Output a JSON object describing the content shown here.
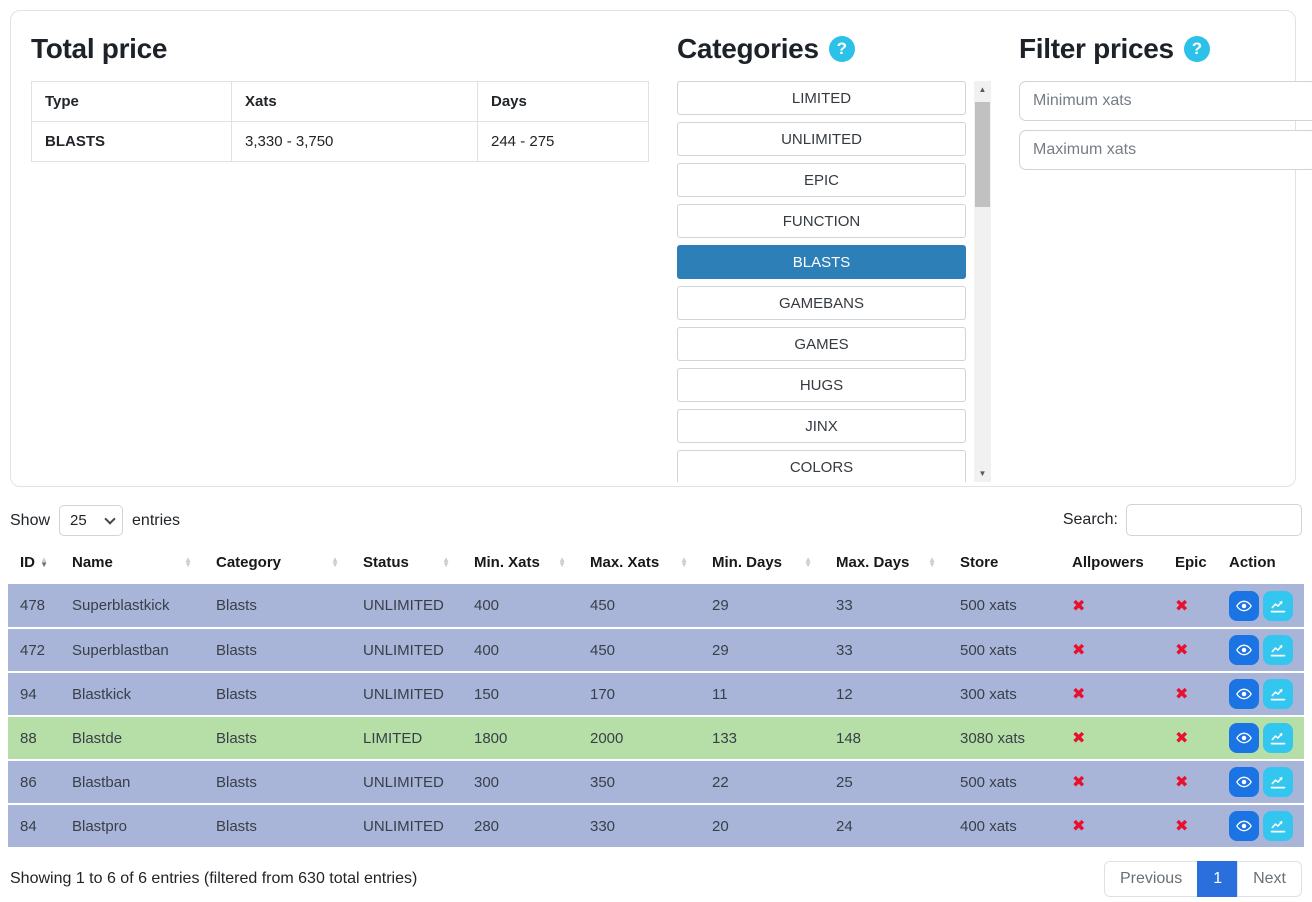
{
  "top": {
    "total_price": {
      "title": "Total price",
      "table": {
        "headers": [
          "Type",
          "Xats",
          "Days"
        ],
        "rows": [
          {
            "type": "BLASTS",
            "xats": "3,330 - 3,750",
            "days": "244 - 275"
          }
        ]
      }
    },
    "categories": {
      "title": "Categories",
      "help_icon": "?",
      "items": [
        {
          "label": "LIMITED",
          "selected": false
        },
        {
          "label": "UNLIMITED",
          "selected": false
        },
        {
          "label": "EPIC",
          "selected": false
        },
        {
          "label": "FUNCTION",
          "selected": false
        },
        {
          "label": "BLASTS",
          "selected": true
        },
        {
          "label": "GAMEBANS",
          "selected": false
        },
        {
          "label": "GAMES",
          "selected": false
        },
        {
          "label": "HUGS",
          "selected": false
        },
        {
          "label": "JINX",
          "selected": false
        },
        {
          "label": "COLORS",
          "selected": false
        }
      ]
    },
    "filter_prices": {
      "title": "Filter prices",
      "help_icon": "?",
      "min_placeholder": "Minimum xats",
      "max_placeholder": "Maximum xats"
    }
  },
  "table": {
    "show_label": "Show",
    "entries_label": "entries",
    "length_value": "25",
    "search_label": "Search:",
    "search_value": "",
    "columns": [
      {
        "label": "ID",
        "sort": "desc"
      },
      {
        "label": "Name",
        "sort": "none"
      },
      {
        "label": "Category",
        "sort": "none"
      },
      {
        "label": "Status",
        "sort": "none"
      },
      {
        "label": "Min. Xats",
        "sort": "none"
      },
      {
        "label": "Max. Xats",
        "sort": "none"
      },
      {
        "label": "Min. Days",
        "sort": "none"
      },
      {
        "label": "Max. Days",
        "sort": "none"
      },
      {
        "label": "Store",
        "sort": null
      },
      {
        "label": "Allpowers",
        "sort": null
      },
      {
        "label": "Epic",
        "sort": null
      },
      {
        "label": "Action",
        "sort": null
      }
    ],
    "rows": [
      {
        "id": "478",
        "name": "Superblastkick",
        "category": "Blasts",
        "status": "UNLIMITED",
        "min_xats": "400",
        "max_xats": "450",
        "min_days": "29",
        "max_days": "33",
        "store": "500 xats",
        "allpowers": "✖",
        "epic": "✖",
        "highlight": false
      },
      {
        "id": "472",
        "name": "Superblastban",
        "category": "Blasts",
        "status": "UNLIMITED",
        "min_xats": "400",
        "max_xats": "450",
        "min_days": "29",
        "max_days": "33",
        "store": "500 xats",
        "allpowers": "✖",
        "epic": "✖",
        "highlight": false
      },
      {
        "id": "94",
        "name": "Blastkick",
        "category": "Blasts",
        "status": "UNLIMITED",
        "min_xats": "150",
        "max_xats": "170",
        "min_days": "11",
        "max_days": "12",
        "store": "300 xats",
        "allpowers": "✖",
        "epic": "✖",
        "highlight": false
      },
      {
        "id": "88",
        "name": "Blastde",
        "category": "Blasts",
        "status": "LIMITED",
        "min_xats": "1800",
        "max_xats": "2000",
        "min_days": "133",
        "max_days": "148",
        "store": "3080 xats",
        "allpowers": "✖",
        "epic": "✖",
        "highlight": true
      },
      {
        "id": "86",
        "name": "Blastban",
        "category": "Blasts",
        "status": "UNLIMITED",
        "min_xats": "300",
        "max_xats": "350",
        "min_days": "22",
        "max_days": "25",
        "store": "500 xats",
        "allpowers": "✖",
        "epic": "✖",
        "highlight": false
      },
      {
        "id": "84",
        "name": "Blastpro",
        "category": "Blasts",
        "status": "UNLIMITED",
        "min_xats": "280",
        "max_xats": "330",
        "min_days": "20",
        "max_days": "24",
        "store": "400 xats",
        "allpowers": "✖",
        "epic": "✖",
        "highlight": false
      }
    ],
    "footer": {
      "info": "Showing 1 to 6 of 6 entries (filtered from 630 total entries)",
      "previous_label": "Previous",
      "page": "1",
      "next_label": "Next"
    }
  },
  "colors": {
    "category_selected": "#2d7fb8",
    "help_icon_bg": "#2bc1e8",
    "row_blue": "#a8b5d9",
    "row_green": "#b6dfa8",
    "x_red": "#e8102e",
    "view_button_blue": "#1b74e4",
    "chart_button_cyan": "#33c7f0",
    "pagination_active_blue": "#2a6fdb"
  }
}
